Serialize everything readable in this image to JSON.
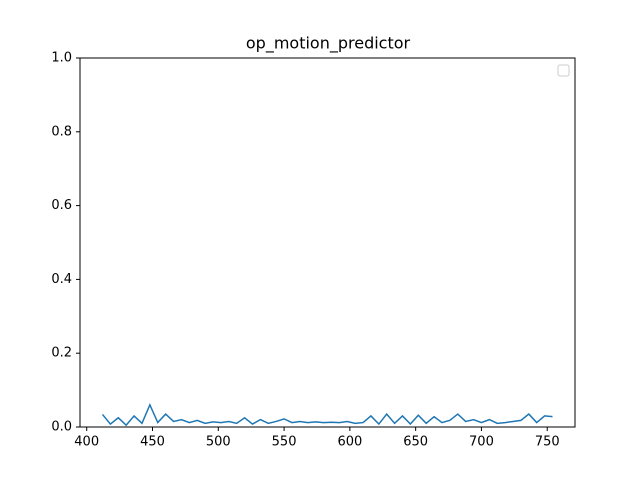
{
  "chart_data": {
    "type": "line",
    "title": "op_motion_predictor",
    "x": [
      412,
      418,
      424,
      430,
      436,
      442,
      448,
      454,
      460,
      466,
      472,
      478,
      484,
      490,
      496,
      502,
      508,
      514,
      520,
      526,
      532,
      538,
      544,
      550,
      556,
      562,
      568,
      574,
      580,
      586,
      592,
      598,
      604,
      610,
      616,
      622,
      628,
      634,
      640,
      646,
      652,
      658,
      664,
      670,
      676,
      682,
      688,
      694,
      700,
      706,
      712,
      718,
      724,
      730,
      736,
      742,
      748,
      754
    ],
    "series": [
      {
        "color": "#1f77b4",
        "values": [
          0.034,
          0.008,
          0.025,
          0.005,
          0.03,
          0.01,
          0.06,
          0.012,
          0.035,
          0.015,
          0.02,
          0.012,
          0.018,
          0.01,
          0.014,
          0.012,
          0.015,
          0.01,
          0.025,
          0.008,
          0.02,
          0.01,
          0.015,
          0.022,
          0.012,
          0.015,
          0.012,
          0.014,
          0.012,
          0.013,
          0.012,
          0.015,
          0.01,
          0.012,
          0.03,
          0.008,
          0.035,
          0.01,
          0.03,
          0.008,
          0.032,
          0.01,
          0.028,
          0.012,
          0.018,
          0.035,
          0.015,
          0.02,
          0.012,
          0.02,
          0.01,
          0.012,
          0.015,
          0.018,
          0.035,
          0.012,
          0.03,
          0.028
        ]
      }
    ],
    "xlim": [
      394.9,
      771.1
    ],
    "ylim": [
      0,
      1
    ],
    "xticks": [
      400,
      450,
      500,
      550,
      600,
      650,
      700,
      750
    ],
    "yticks": [
      {
        "value": 0,
        "label": "0.0"
      },
      {
        "value": 0.2,
        "label": "0.2"
      },
      {
        "value": 0.4,
        "label": "0.4"
      },
      {
        "value": 0.6,
        "label": "0.6"
      },
      {
        "value": 0.8,
        "label": "0.8"
      },
      {
        "value": 1,
        "label": "1.0"
      }
    ]
  }
}
